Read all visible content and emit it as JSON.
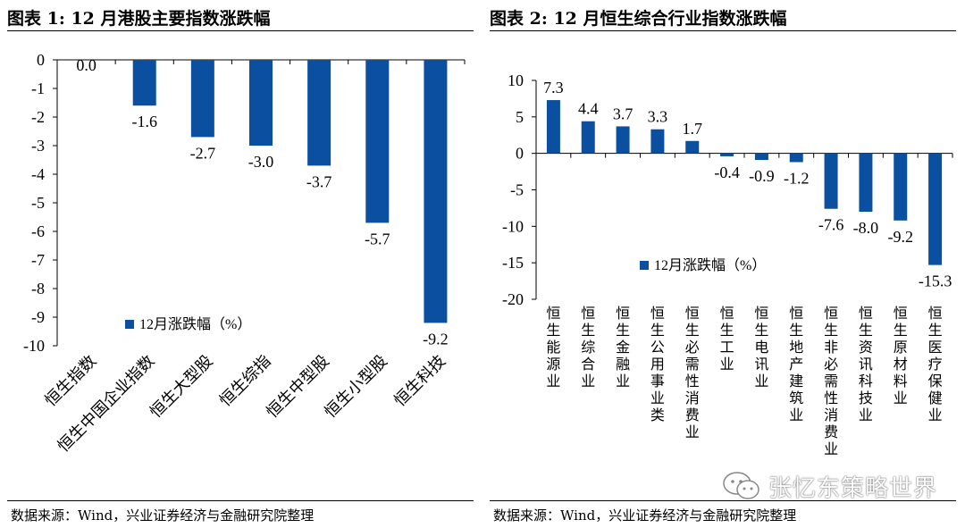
{
  "colors": {
    "bar": "#0b4fa0"
  },
  "left": {
    "title": "图表 1:  12 月港股主要指数涨跌幅",
    "source": "数据来源：Wind，兴业证券经济与金融研究院整理"
  },
  "right": {
    "title": "图表 2:  12 月恒生综合行业指数涨跌幅",
    "source": "数据来源：Wind，兴业证券经济与金融研究院整理"
  },
  "watermark": {
    "text": "张忆东策略世界",
    "icon": "wechat-icon"
  },
  "chart_data": [
    {
      "type": "bar",
      "title": "12 月港股主要指数涨跌幅",
      "categories": [
        "恒生指数",
        "恒生中国企业指数",
        "恒生大型股",
        "恒生综指",
        "恒生中型股",
        "恒生小型股",
        "恒生科技"
      ],
      "series": [
        {
          "name": "12月涨跌幅（%）",
          "values": [
            0.0,
            -1.6,
            -2.7,
            -3.0,
            -3.7,
            -5.7,
            -9.2
          ]
        }
      ],
      "value_labels": [
        "0.0",
        "-1.6",
        "-2.7",
        "-3.0",
        "-3.7",
        "-5.7",
        "-9.2"
      ],
      "yticks": [
        0,
        -1,
        -2,
        -3,
        -4,
        -5,
        -6,
        -7,
        -8,
        -9,
        -10
      ],
      "ylim": [
        -10,
        0
      ],
      "legend": "12月涨跌幅（%）",
      "legend_position": "bottom-left",
      "grid": false
    },
    {
      "type": "bar",
      "title": "12 月恒生综合行业指数涨跌幅",
      "categories": [
        "恒生能源业",
        "恒生综合业",
        "恒生金融业",
        "恒生公用事业类",
        "恒生必需性消费业",
        "恒生工业",
        "恒生电讯业",
        "恒生地产建筑业",
        "恒生非必需性消费业",
        "恒生资讯科技业",
        "恒生原材料业",
        "恒生医疗保健业"
      ],
      "series": [
        {
          "name": "12月涨跌幅（%）",
          "values": [
            7.3,
            4.4,
            3.7,
            3.3,
            1.7,
            -0.4,
            -0.9,
            -1.2,
            -7.6,
            -8.0,
            -9.2,
            -15.3
          ]
        }
      ],
      "value_labels": [
        "7.3",
        "4.4",
        "3.7",
        "3.3",
        "1.7",
        "-0.4",
        "-0.9",
        "-1.2",
        "-7.6",
        "-8.0",
        "-9.2",
        "-15.3"
      ],
      "yticks": [
        10,
        5,
        0,
        -5,
        -10,
        -15,
        -20
      ],
      "ylim": [
        -20,
        10
      ],
      "legend": "12月涨跌幅（%）",
      "legend_position": "bottom-right",
      "grid": false
    }
  ]
}
